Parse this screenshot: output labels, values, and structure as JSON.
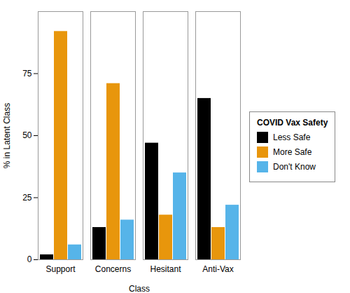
{
  "chart_data": {
    "type": "bar",
    "categories": [
      "Support",
      "Concerns",
      "Hesitant",
      "Anti-Vax"
    ],
    "series": [
      {
        "name": "Less Safe",
        "color": "#000000",
        "values": [
          2,
          13,
          47,
          65
        ]
      },
      {
        "name": "More Safe",
        "color": "#E8960C",
        "values": [
          92,
          71,
          18,
          13
        ]
      },
      {
        "name": "Don't Know",
        "color": "#56B4E9",
        "values": [
          6,
          16,
          35,
          22
        ]
      }
    ],
    "xlabel": "Class",
    "ylabel": "% in Latent Class",
    "legend_title": "COVID Vax Safety",
    "legend": "right",
    "ylim": [
      0,
      100
    ],
    "yticks": [
      0,
      25,
      50,
      75
    ],
    "grid": false
  }
}
